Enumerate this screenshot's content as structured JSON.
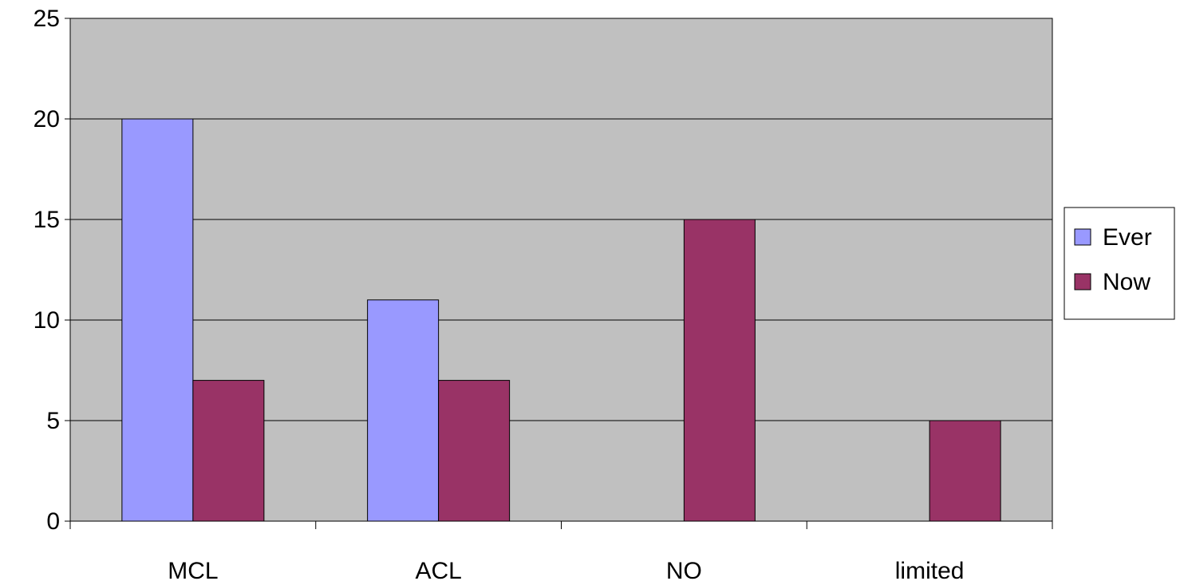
{
  "chart_data": {
    "type": "bar",
    "title": "",
    "xlabel": "",
    "ylabel": "",
    "categories": [
      "MCL",
      "ACL",
      "NO",
      "limited"
    ],
    "series": [
      {
        "name": "Ever",
        "values": [
          20,
          11,
          0,
          0
        ],
        "color": "#9999FF"
      },
      {
        "name": "Now",
        "values": [
          7,
          7,
          15,
          5
        ],
        "color": "#993366"
      }
    ],
    "ylim": [
      0,
      25
    ],
    "yticks": [
      0,
      5,
      10,
      15,
      20,
      25
    ],
    "ytick_labels": [
      "0",
      "5",
      "10",
      "15",
      "20",
      "25"
    ],
    "grid": true,
    "legend_position": "right",
    "plot_background": "#C0C0C0",
    "gridline_color": "#000000"
  }
}
